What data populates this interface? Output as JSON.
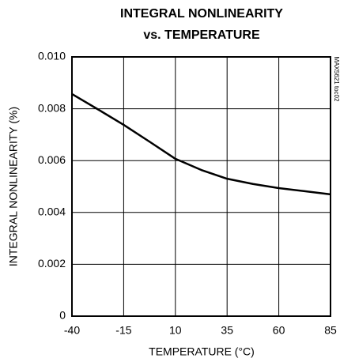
{
  "chart_data": {
    "type": "line",
    "title": [
      "INTEGRAL NONLINEARITY",
      "vs. TEMPERATURE"
    ],
    "x_label": "TEMPERATURE (°C)",
    "y_label": "INTEGRAL NONLINEARITY (%)",
    "annotation": "MAX5621 toc02",
    "x": [
      -40,
      -27.5,
      -15,
      -2.5,
      10,
      22.5,
      35,
      47.5,
      60,
      72.5,
      85
    ],
    "values": [
      0.00857,
      0.00798,
      0.00738,
      0.00673,
      0.00607,
      0.00564,
      0.0053,
      0.0051,
      0.00494,
      0.00482,
      0.0047
    ],
    "color": "#000000",
    "xlim": [
      -40,
      85
    ],
    "xticks": [
      -40,
      -15,
      10,
      35,
      60,
      85
    ],
    "ylim": [
      0,
      0.01
    ],
    "yticks": [
      0,
      0.002,
      0.004,
      0.006,
      0.008,
      {
        "value": 0.01,
        "label": "0.010"
      }
    ],
    "grid": true
  }
}
